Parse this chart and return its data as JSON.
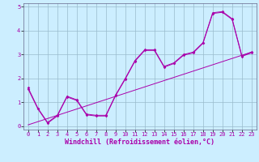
{
  "xlabel": "Windchill (Refroidissement éolien,°C)",
  "xlim": [
    0,
    23
  ],
  "ylim": [
    0,
    5
  ],
  "bg_color": "#cceeff",
  "grid_color": "#99bbcc",
  "line_color": "#aa00aa",
  "line1_x": [
    0,
    1,
    2,
    3,
    4,
    5,
    6,
    7,
    8,
    9,
    10,
    11,
    12,
    13,
    14,
    15,
    16,
    17,
    18,
    19,
    20,
    21,
    22,
    23
  ],
  "line1_y": [
    1.6,
    0.75,
    0.15,
    0.45,
    1.25,
    1.1,
    0.5,
    0.45,
    0.45,
    1.3,
    2.0,
    2.75,
    3.2,
    3.2,
    2.5,
    2.65,
    3.0,
    3.1,
    3.5,
    4.75,
    4.8,
    4.5,
    2.95,
    3.1
  ],
  "line2_x": [
    0,
    1,
    2,
    3,
    4,
    5,
    6,
    7,
    8,
    9,
    10,
    11,
    12,
    13,
    14,
    15,
    16,
    17,
    18,
    19,
    20,
    21,
    22,
    23
  ],
  "line2_y": [
    1.55,
    0.72,
    0.12,
    0.42,
    1.22,
    1.07,
    0.47,
    0.42,
    0.42,
    1.27,
    1.97,
    2.72,
    3.17,
    3.17,
    2.47,
    2.62,
    2.97,
    3.07,
    3.47,
    4.72,
    4.77,
    4.47,
    2.92,
    3.07
  ],
  "line3_x": [
    0,
    23
  ],
  "line3_y": [
    0.05,
    3.1
  ],
  "xticks": [
    0,
    1,
    2,
    3,
    4,
    5,
    6,
    7,
    8,
    9,
    10,
    11,
    12,
    13,
    14,
    15,
    16,
    17,
    18,
    19,
    20,
    21,
    22,
    23
  ],
  "yticks": [
    0,
    1,
    2,
    3,
    4,
    5
  ],
  "tick_fontsize": 5,
  "xlabel_fontsize": 6,
  "spine_color": "#666688"
}
